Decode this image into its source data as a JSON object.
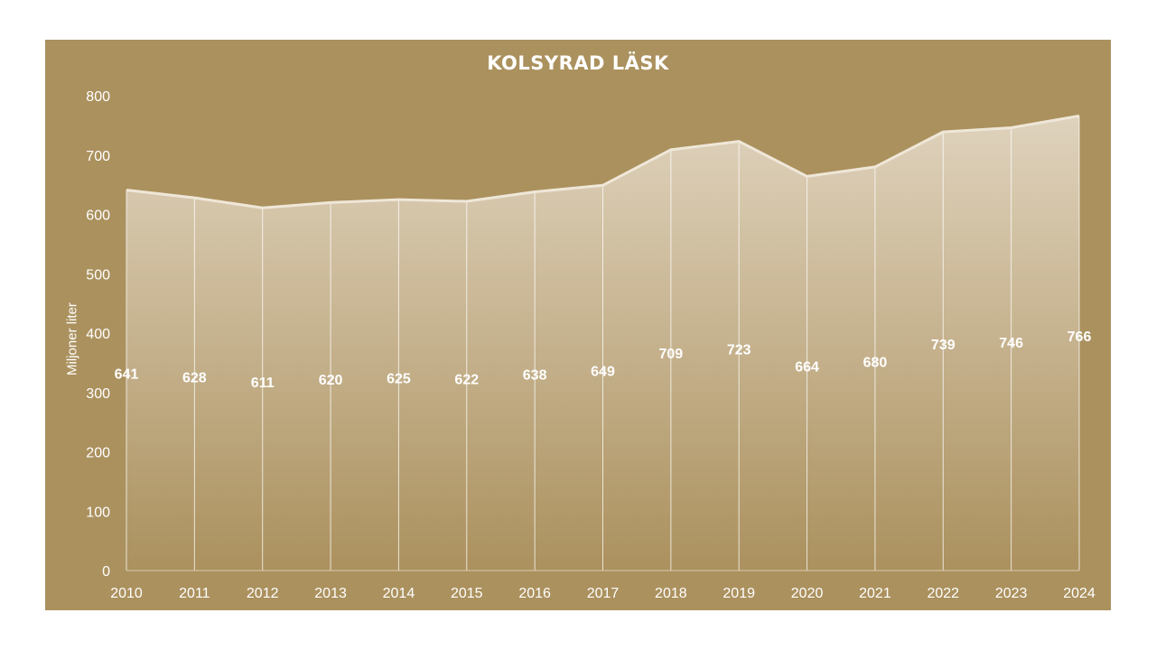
{
  "colors": {
    "panel_background": "#ab915e",
    "area_fill_top": "#e2d6c2",
    "area_fill_bottom": "#ab915e",
    "series_line": "#efe7d8",
    "text": "#ffffff"
  },
  "chart_data": {
    "type": "area",
    "title": "KOLSYRAD  LÄSK",
    "xlabel": "",
    "ylabel": "Miljoner liter",
    "categories": [
      "2010",
      "2011",
      "2012",
      "2013",
      "2014",
      "2015",
      "2016",
      "2017",
      "2018",
      "2019",
      "2020",
      "2021",
      "2022",
      "2023",
      "2024"
    ],
    "values": [
      641,
      628,
      611,
      620,
      625,
      622,
      638,
      649,
      709,
      723,
      664,
      680,
      739,
      746,
      766
    ],
    "ylim": [
      0,
      800
    ],
    "yticks": [
      "0",
      "100",
      "200",
      "300",
      "400",
      "500",
      "600",
      "700",
      "800"
    ],
    "grid": false,
    "legend": "none",
    "data_labels": true
  }
}
